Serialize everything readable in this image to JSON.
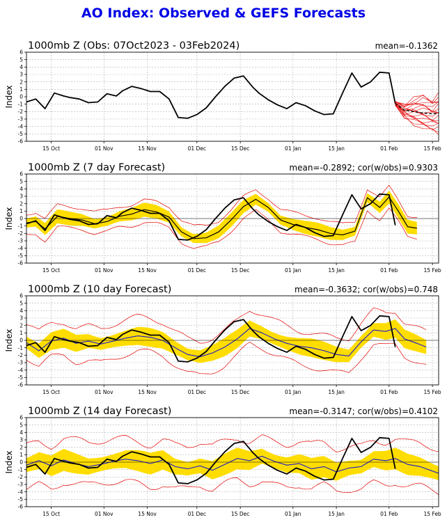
{
  "title": "AO Index: Observed & GEFS Forecasts",
  "colors": {
    "title": "#0000e6",
    "observed": "#000000",
    "ensemble_member": "#e60000",
    "ensemble_mean": "#1a1acc",
    "spread_band": "#ffdd00",
    "grid": "#b0b0b0"
  },
  "chart_data": [
    {
      "type": "line",
      "title": "1000mb Z (Obs: 07Oct2023 - 03Feb2024)",
      "stat": "mean=-0.1362",
      "ylabel": "Index",
      "ylim": [
        -6,
        6
      ],
      "xlim": [
        "2023-10-07",
        "2024-02-17"
      ],
      "xticks": [
        "15 Oct",
        "01 Nov",
        "15 Nov",
        "01 Dec",
        "15 Dec",
        "01 Jan",
        "15 Jan",
        "01 Feb",
        "15 Feb"
      ],
      "yticks": [
        -6,
        -5,
        -4,
        -3,
        -2,
        -1,
        0,
        1,
        2,
        3,
        4,
        5,
        6
      ],
      "grid": true,
      "series": [
        {
          "role": "observed",
          "dates": [
            "2023-10-07",
            "2023-10-10",
            "2023-10-13",
            "2023-10-16",
            "2023-10-19",
            "2023-10-21",
            "2023-10-24",
            "2023-10-27",
            "2023-10-30",
            "2023-11-02",
            "2023-11-05",
            "2023-11-07",
            "2023-11-10",
            "2023-11-13",
            "2023-11-16",
            "2023-11-19",
            "2023-11-22",
            "2023-11-25",
            "2023-11-28",
            "2023-12-01",
            "2023-12-04",
            "2023-12-07",
            "2023-12-10",
            "2023-12-13",
            "2023-12-16",
            "2023-12-19",
            "2023-12-21",
            "2023-12-24",
            "2023-12-27",
            "2023-12-30",
            "2024-01-02",
            "2024-01-05",
            "2024-01-08",
            "2024-01-11",
            "2024-01-14",
            "2024-01-17",
            "2024-01-20",
            "2024-01-23",
            "2024-01-26",
            "2024-01-29",
            "2024-02-01",
            "2024-02-03"
          ],
          "values": [
            -0.7,
            -0.3,
            -1.6,
            0.5,
            0.1,
            -0.1,
            -0.3,
            -0.8,
            -0.7,
            0.4,
            0.1,
            0.8,
            1.4,
            1.1,
            0.7,
            0.7,
            -0.3,
            -2.8,
            -2.9,
            -2.4,
            -1.5,
            0.0,
            1.4,
            2.5,
            2.8,
            1.3,
            0.5,
            -0.4,
            -1.1,
            -1.6,
            -0.8,
            -1.2,
            -1.9,
            -2.4,
            -2.3,
            0.5,
            3.2,
            1.3,
            2.0,
            3.3,
            3.2,
            -0.9
          ]
        },
        {
          "role": "ensemble_mean",
          "dates": [
            "2024-02-03",
            "2024-02-06",
            "2024-02-09",
            "2024-02-12",
            "2024-02-15",
            "2024-02-17"
          ],
          "values": [
            -0.9,
            -1.8,
            -2.0,
            -2.2,
            -2.3,
            -2.2
          ]
        }
      ],
      "ensemble_fan": {
        "dates": [
          "2024-02-03",
          "2024-02-06",
          "2024-02-09",
          "2024-02-12",
          "2024-02-15",
          "2024-02-17"
        ],
        "lower": [
          -1.2,
          -2.8,
          -3.6,
          -4.3,
          -4.6,
          -4.8
        ],
        "upper": [
          -0.6,
          -1.0,
          -0.3,
          0.2,
          -0.4,
          0.3
        ]
      }
    },
    {
      "type": "line",
      "title": "1000mb Z (7 day Forecast)",
      "stat": "mean=-0.2892; cor(w/obs)=0.9303",
      "ylabel": "Index",
      "ylim": [
        -6,
        6
      ],
      "xlim": [
        "2023-10-07",
        "2024-02-17"
      ],
      "xticks": [
        "15 Oct",
        "01 Nov",
        "15 Nov",
        "01 Dec",
        "15 Dec",
        "01 Jan",
        "15 Jan",
        "01 Feb",
        "15 Feb"
      ],
      "yticks": [
        -6,
        -5,
        -4,
        -3,
        -2,
        -1,
        0,
        1,
        2,
        3,
        4,
        5,
        6
      ],
      "grid": true,
      "band": {
        "dates": [
          "2023-10-07",
          "2024-02-10"
        ],
        "halfwidth": 0.9
      },
      "envelope_width": 1.7,
      "series": [
        {
          "role": "observed",
          "dates": [
            "2023-10-07",
            "2023-10-10",
            "2023-10-13",
            "2023-10-16",
            "2023-10-19",
            "2023-10-21",
            "2023-10-24",
            "2023-10-27",
            "2023-10-30",
            "2023-11-02",
            "2023-11-05",
            "2023-11-07",
            "2023-11-10",
            "2023-11-13",
            "2023-11-16",
            "2023-11-19",
            "2023-11-22",
            "2023-11-25",
            "2023-11-28",
            "2023-12-01",
            "2023-12-04",
            "2023-12-07",
            "2023-12-10",
            "2023-12-13",
            "2023-12-16",
            "2023-12-19",
            "2023-12-21",
            "2023-12-24",
            "2023-12-27",
            "2023-12-30",
            "2024-01-02",
            "2024-01-05",
            "2024-01-08",
            "2024-01-11",
            "2024-01-14",
            "2024-01-17",
            "2024-01-20",
            "2024-01-23",
            "2024-01-26",
            "2024-01-29",
            "2024-02-01",
            "2024-02-03"
          ],
          "values": [
            -0.7,
            -0.3,
            -1.6,
            0.5,
            0.1,
            -0.1,
            -0.3,
            -0.8,
            -0.7,
            0.4,
            0.1,
            0.8,
            1.4,
            1.1,
            0.7,
            0.7,
            -0.3,
            -2.8,
            -2.9,
            -2.4,
            -1.5,
            0.0,
            1.4,
            2.5,
            2.8,
            1.3,
            0.5,
            -0.4,
            -1.1,
            -1.6,
            -0.8,
            -1.2,
            -1.9,
            -2.4,
            -2.3,
            0.5,
            3.2,
            1.3,
            2.0,
            3.3,
            3.2,
            -0.9
          ]
        },
        {
          "role": "forecast_mean",
          "dates": [
            "2023-10-07",
            "2023-10-10",
            "2023-10-13",
            "2023-10-17",
            "2023-10-21",
            "2023-10-25",
            "2023-10-29",
            "2023-11-02",
            "2023-11-06",
            "2023-11-10",
            "2023-11-14",
            "2023-11-18",
            "2023-11-22",
            "2023-11-26",
            "2023-11-30",
            "2023-12-04",
            "2023-12-08",
            "2023-12-12",
            "2023-12-16",
            "2023-12-20",
            "2023-12-24",
            "2023-12-28",
            "2024-01-01",
            "2024-01-05",
            "2024-01-09",
            "2024-01-13",
            "2024-01-17",
            "2024-01-21",
            "2024-01-25",
            "2024-01-29",
            "2024-02-01",
            "2024-02-04",
            "2024-02-07",
            "2024-02-10"
          ],
          "values": [
            -0.6,
            -0.4,
            -1.4,
            0.3,
            0.0,
            -0.2,
            -0.7,
            -0.4,
            0.3,
            0.6,
            1.2,
            0.9,
            0.2,
            -1.8,
            -2.7,
            -2.6,
            -1.8,
            -0.2,
            1.6,
            2.6,
            1.5,
            -0.2,
            -0.8,
            -1.2,
            -1.5,
            -2.0,
            -2.2,
            -1.7,
            2.8,
            1.5,
            2.9,
            1.0,
            -1.1,
            -1.3
          ]
        }
      ]
    },
    {
      "type": "line",
      "title": "1000mb Z (10 day Forecast)",
      "stat": "mean=-0.3632; cor(w/obs)=0.748",
      "ylabel": "Index",
      "ylim": [
        -6,
        6
      ],
      "xlim": [
        "2023-10-07",
        "2024-02-17"
      ],
      "xticks": [
        "15 Oct",
        "01 Nov",
        "15 Nov",
        "01 Dec",
        "15 Dec",
        "01 Jan",
        "15 Jan",
        "01 Feb",
        "15 Feb"
      ],
      "yticks": [
        -6,
        -5,
        -4,
        -3,
        -2,
        -1,
        0,
        1,
        2,
        3,
        4,
        5,
        6
      ],
      "grid": true,
      "band": {
        "dates": [
          "2023-10-07",
          "2024-02-13"
        ],
        "halfwidth": 1.2
      },
      "envelope_width": 2.7,
      "series": [
        {
          "role": "observed",
          "dates": [
            "2023-10-07",
            "2023-10-10",
            "2023-10-13",
            "2023-10-16",
            "2023-10-19",
            "2023-10-21",
            "2023-10-24",
            "2023-10-27",
            "2023-10-30",
            "2023-11-02",
            "2023-11-05",
            "2023-11-07",
            "2023-11-10",
            "2023-11-13",
            "2023-11-16",
            "2023-11-19",
            "2023-11-22",
            "2023-11-25",
            "2023-11-28",
            "2023-12-01",
            "2023-12-04",
            "2023-12-07",
            "2023-12-10",
            "2023-12-13",
            "2023-12-16",
            "2023-12-19",
            "2023-12-21",
            "2023-12-24",
            "2023-12-27",
            "2023-12-30",
            "2024-01-02",
            "2024-01-05",
            "2024-01-08",
            "2024-01-11",
            "2024-01-14",
            "2024-01-17",
            "2024-01-20",
            "2024-01-23",
            "2024-01-26",
            "2024-01-29",
            "2024-02-01",
            "2024-02-03"
          ],
          "values": [
            -0.7,
            -0.3,
            -1.6,
            0.5,
            0.1,
            -0.1,
            -0.3,
            -0.8,
            -0.7,
            0.4,
            0.1,
            0.8,
            1.4,
            1.1,
            0.7,
            0.7,
            -0.3,
            -2.8,
            -2.9,
            -2.4,
            -1.5,
            0.0,
            1.4,
            2.5,
            2.8,
            1.3,
            0.5,
            -0.4,
            -1.1,
            -1.6,
            -0.8,
            -1.2,
            -1.9,
            -2.4,
            -2.3,
            0.5,
            3.2,
            1.3,
            2.0,
            3.3,
            3.2,
            -0.9
          ]
        },
        {
          "role": "forecast_mean",
          "dates": [
            "2023-10-07",
            "2023-10-11",
            "2023-10-15",
            "2023-10-19",
            "2023-10-23",
            "2023-10-27",
            "2023-10-31",
            "2023-11-04",
            "2023-11-08",
            "2023-11-12",
            "2023-11-16",
            "2023-11-20",
            "2023-11-24",
            "2023-11-28",
            "2023-12-02",
            "2023-12-06",
            "2023-12-10",
            "2023-12-14",
            "2023-12-18",
            "2023-12-22",
            "2023-12-26",
            "2023-12-30",
            "2024-01-03",
            "2024-01-07",
            "2024-01-11",
            "2024-01-15",
            "2024-01-19",
            "2024-01-23",
            "2024-01-27",
            "2024-01-31",
            "2024-02-03",
            "2024-02-06",
            "2024-02-10",
            "2024-02-13"
          ],
          "values": [
            -0.3,
            -1.4,
            -0.1,
            0.3,
            -0.4,
            -0.1,
            -0.5,
            -0.1,
            0.3,
            0.6,
            0.4,
            0.0,
            -1.0,
            -1.9,
            -2.2,
            -1.7,
            -0.9,
            0.2,
            1.6,
            1.0,
            0.2,
            -0.4,
            -0.8,
            -1.0,
            -1.4,
            -1.9,
            -2.1,
            -0.2,
            1.4,
            1.2,
            1.6,
            0.2,
            -0.4,
            -0.9
          ]
        }
      ]
    },
    {
      "type": "line",
      "title": "1000mb Z (14 day Forecast)",
      "stat": "mean=-0.3147; cor(w/obs)=0.4102",
      "ylabel": "Index",
      "ylim": [
        -6,
        6
      ],
      "xlim": [
        "2023-10-07",
        "2024-02-17"
      ],
      "xticks": [
        "15 Oct",
        "01 Nov",
        "15 Nov",
        "01 Dec",
        "15 Dec",
        "01 Jan",
        "15 Jan",
        "01 Feb",
        "15 Feb"
      ],
      "yticks": [
        -6,
        -5,
        -4,
        -3,
        -2,
        -1,
        0,
        1,
        2,
        3,
        4,
        5,
        6
      ],
      "grid": true,
      "band": {
        "dates": [
          "2023-10-07",
          "2024-02-17"
        ],
        "halfwidth": 1.4
      },
      "envelope_width": 3.4,
      "series": [
        {
          "role": "observed",
          "dates": [
            "2023-10-07",
            "2023-10-10",
            "2023-10-13",
            "2023-10-16",
            "2023-10-19",
            "2023-10-21",
            "2023-10-24",
            "2023-10-27",
            "2023-10-30",
            "2023-11-02",
            "2023-11-05",
            "2023-11-07",
            "2023-11-10",
            "2023-11-13",
            "2023-11-16",
            "2023-11-19",
            "2023-11-22",
            "2023-11-25",
            "2023-11-28",
            "2023-12-01",
            "2023-12-04",
            "2023-12-07",
            "2023-12-10",
            "2023-12-13",
            "2023-12-16",
            "2023-12-19",
            "2023-12-21",
            "2023-12-24",
            "2023-12-27",
            "2023-12-30",
            "2024-01-02",
            "2024-01-05",
            "2024-01-08",
            "2024-01-11",
            "2024-01-14",
            "2024-01-17",
            "2024-01-20",
            "2024-01-23",
            "2024-01-26",
            "2024-01-29",
            "2024-02-01",
            "2024-02-03"
          ],
          "values": [
            -0.7,
            -0.3,
            -1.6,
            0.5,
            0.1,
            -0.1,
            -0.3,
            -0.8,
            -0.7,
            0.4,
            0.1,
            0.8,
            1.4,
            1.1,
            0.7,
            0.7,
            -0.3,
            -2.8,
            -2.9,
            -2.4,
            -1.5,
            0.0,
            1.4,
            2.5,
            2.8,
            1.3,
            0.5,
            -0.4,
            -1.1,
            -1.6,
            -0.8,
            -1.2,
            -1.9,
            -2.4,
            -2.3,
            0.5,
            3.2,
            1.3,
            2.0,
            3.3,
            3.2,
            -0.9
          ]
        },
        {
          "role": "forecast_mean",
          "dates": [
            "2023-10-07",
            "2023-10-11",
            "2023-10-15",
            "2023-10-19",
            "2023-10-23",
            "2023-10-27",
            "2023-10-31",
            "2023-11-04",
            "2023-11-08",
            "2023-11-12",
            "2023-11-16",
            "2023-11-20",
            "2023-11-24",
            "2023-11-28",
            "2023-12-02",
            "2023-12-06",
            "2023-12-10",
            "2023-12-14",
            "2023-12-18",
            "2023-12-22",
            "2023-12-26",
            "2023-12-30",
            "2024-01-03",
            "2024-01-07",
            "2024-01-11",
            "2024-01-15",
            "2024-01-19",
            "2024-01-23",
            "2024-01-27",
            "2024-01-31",
            "2024-02-03",
            "2024-02-07",
            "2024-02-11",
            "2024-02-15",
            "2024-02-17"
          ],
          "values": [
            -0.4,
            0.2,
            -0.5,
            0.3,
            -0.2,
            -0.6,
            -0.3,
            0.1,
            0.4,
            0.2,
            -0.2,
            0.3,
            -0.6,
            -0.9,
            -0.5,
            -1.1,
            -0.3,
            0.5,
            0.2,
            0.8,
            0.1,
            -0.4,
            -0.2,
            -0.9,
            -0.6,
            -1.3,
            -0.8,
            -0.6,
            0.4,
            0.2,
            0.5,
            -0.3,
            -0.6,
            -1.2,
            -1.5
          ]
        }
      ]
    }
  ]
}
